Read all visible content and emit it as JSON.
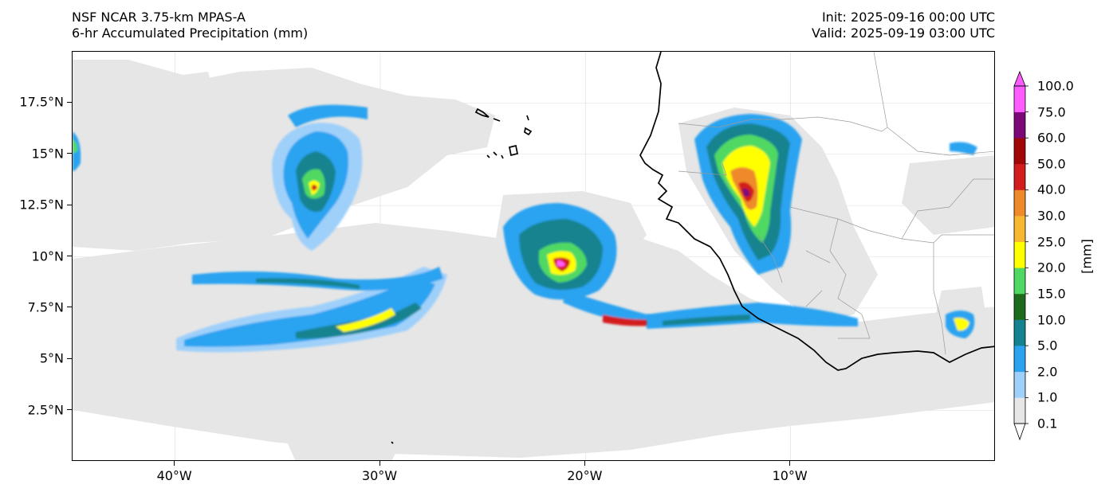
{
  "header": {
    "title_line1": "NSF NCAR 3.75-km MPAS-A",
    "title_line2": "6-hr Accumulated Precipitation (mm)",
    "init": "Init: 2025-09-16 00:00 UTC",
    "valid": "Valid: 2025-09-19 03:00 UTC"
  },
  "map": {
    "lat_range": [
      0.0,
      20.0
    ],
    "lon_range": [
      -45.0,
      0.0
    ],
    "lat_ticks": [
      {
        "value": 17.5,
        "label": "17.5°N"
      },
      {
        "value": 15.0,
        "label": "15°N"
      },
      {
        "value": 12.5,
        "label": "12.5°N"
      },
      {
        "value": 10.0,
        "label": "10°N"
      },
      {
        "value": 7.5,
        "label": "7.5°N"
      },
      {
        "value": 5.0,
        "label": "5°N"
      },
      {
        "value": 2.5,
        "label": "2.5°N"
      }
    ],
    "lon_ticks": [
      {
        "value": -40,
        "label": "40°W"
      },
      {
        "value": -30,
        "label": "30°W"
      },
      {
        "value": -20,
        "label": "20°W"
      },
      {
        "value": -10,
        "label": "10°W"
      }
    ],
    "gridlines": true
  },
  "colorbar": {
    "unit": "[mm]",
    "levels": [
      "0.1",
      "1.0",
      "2.0",
      "5.0",
      "10.0",
      "15.0",
      "20.0",
      "25.0",
      "30.0",
      "40.0",
      "50.0",
      "60.0",
      "75.0",
      "100.0"
    ],
    "colors": [
      "#e6e6e6",
      "#9fd0fa",
      "#2ba3f0",
      "#15838f",
      "#1e6b1e",
      "#4fd964",
      "#ffff00",
      "#f7b733",
      "#ef8a2a",
      "#d31d1d",
      "#a00808",
      "#7d0877",
      "#ff5cff"
    ]
  },
  "colors": {
    "light_gray": "#e6e6e6",
    "coast": "#000000",
    "border": "#9a9a9a"
  }
}
